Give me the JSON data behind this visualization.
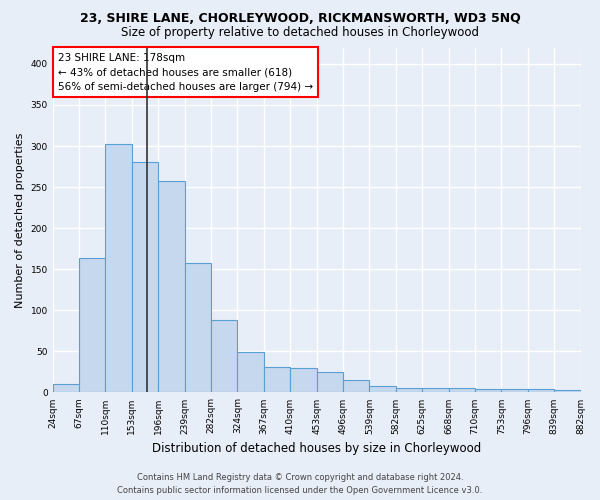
{
  "title1": "23, SHIRE LANE, CHORLEYWOOD, RICKMANSWORTH, WD3 5NQ",
  "title2": "Size of property relative to detached houses in Chorleywood",
  "xlabel": "Distribution of detached houses by size in Chorleywood",
  "ylabel": "Number of detached properties",
  "categories": [
    "24sqm",
    "67sqm",
    "110sqm",
    "153sqm",
    "196sqm",
    "239sqm",
    "282sqm",
    "324sqm",
    "367sqm",
    "410sqm",
    "453sqm",
    "496sqm",
    "539sqm",
    "582sqm",
    "625sqm",
    "668sqm",
    "710sqm",
    "753sqm",
    "796sqm",
    "839sqm",
    "882sqm"
  ],
  "values": [
    10,
    164,
    303,
    281,
    258,
    157,
    88,
    49,
    31,
    30,
    25,
    15,
    8,
    5,
    6,
    5,
    4,
    4,
    4,
    3
  ],
  "bar_color": "#c5d8ed",
  "bar_edge_color": "#5a9fd4",
  "annotation_text_line1": "23 SHIRE LANE: 178sqm",
  "annotation_text_line2": "← 43% of detached houses are smaller (618)",
  "annotation_text_line3": "56% of semi-detached houses are larger (794) →",
  "annotation_box_color": "white",
  "annotation_box_edge_color": "red",
  "vline_color": "#333333",
  "footer1": "Contains HM Land Registry data © Crown copyright and database right 2024.",
  "footer2": "Contains public sector information licensed under the Open Government Licence v3.0.",
  "ylim": [
    0,
    420
  ],
  "yticks": [
    0,
    50,
    100,
    150,
    200,
    250,
    300,
    350,
    400
  ],
  "background_color": "#e8eef7",
  "grid_color": "white",
  "title1_fontsize": 9,
  "title2_fontsize": 8.5,
  "ylabel_fontsize": 8,
  "xlabel_fontsize": 8.5,
  "tick_fontsize": 6.5,
  "footer_fontsize": 6,
  "annotation_fontsize": 7.5
}
